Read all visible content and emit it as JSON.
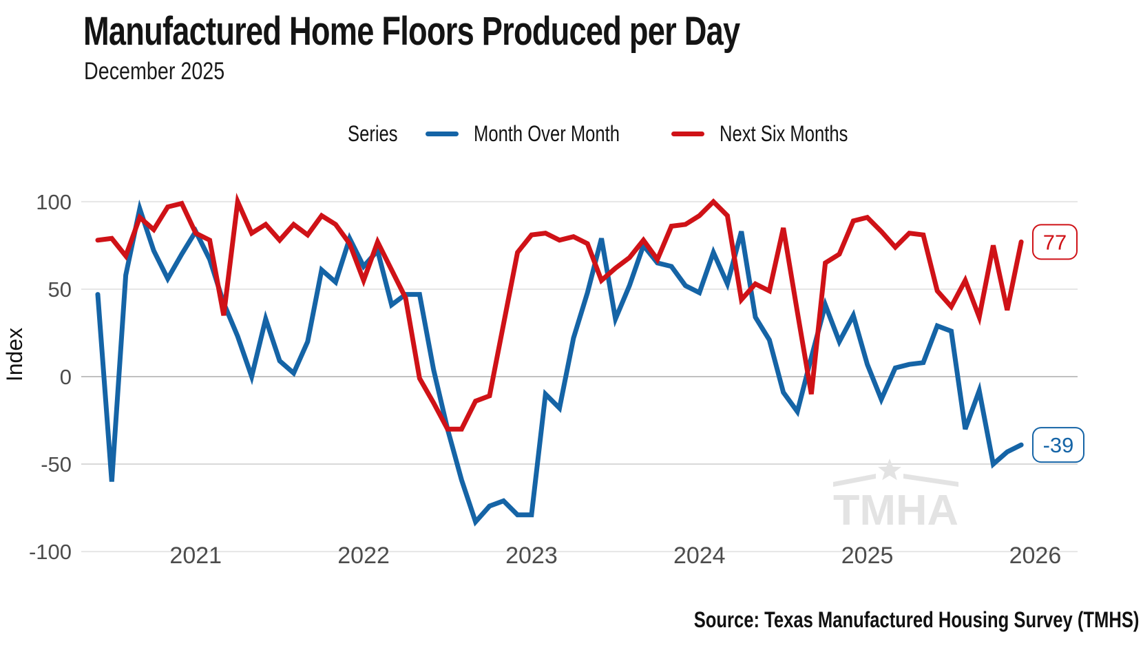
{
  "chart_data": {
    "type": "line",
    "title": "Manufactured Home Floors Produced per Day",
    "subtitle": "December 2025",
    "legend_title": "Series",
    "ylabel": "Index",
    "ylim": [
      -100,
      100
    ],
    "yticks": [
      100,
      50,
      0,
      -50,
      -100
    ],
    "grid": "horizontal-only",
    "legend_position": "top-center",
    "x": [
      "2020-06",
      "2020-07",
      "2020-08",
      "2020-09",
      "2020-10",
      "2020-11",
      "2020-12",
      "2021-01",
      "2021-02",
      "2021-03",
      "2021-04",
      "2021-05",
      "2021-06",
      "2021-07",
      "2021-08",
      "2021-09",
      "2021-10",
      "2021-11",
      "2021-12",
      "2022-01",
      "2022-02",
      "2022-03",
      "2022-04",
      "2022-05",
      "2022-06",
      "2022-07",
      "2022-08",
      "2022-09",
      "2022-10",
      "2022-11",
      "2022-12",
      "2023-01",
      "2023-02",
      "2023-03",
      "2023-04",
      "2023-05",
      "2023-06",
      "2023-07",
      "2023-08",
      "2023-09",
      "2023-10",
      "2023-11",
      "2023-12",
      "2024-01",
      "2024-02",
      "2024-03",
      "2024-04",
      "2024-05",
      "2024-06",
      "2024-07",
      "2024-08",
      "2024-09",
      "2024-10",
      "2024-11",
      "2024-12",
      "2025-01",
      "2025-02",
      "2025-03",
      "2025-04",
      "2025-05",
      "2025-06",
      "2025-07",
      "2025-08",
      "2025-09",
      "2025-10",
      "2025-11",
      "2025-12"
    ],
    "xticks": [
      {
        "label": "2021",
        "month_index": 7
      },
      {
        "label": "2022",
        "month_index": 19
      },
      {
        "label": "2023",
        "month_index": 31
      },
      {
        "label": "2024",
        "month_index": 43
      },
      {
        "label": "2025",
        "month_index": 55
      },
      {
        "label": "2026",
        "month_index": 67
      }
    ],
    "series": [
      {
        "name": "Month Over Month",
        "color": "#1564a6",
        "values": [
          47,
          -60,
          58,
          96,
          72,
          56,
          70,
          83,
          67,
          42,
          23,
          0,
          33,
          9,
          2,
          20,
          61,
          54,
          79,
          63,
          72,
          41,
          47,
          47,
          4,
          -30,
          -59,
          -83,
          -74,
          -71,
          -79,
          -79,
          -10,
          -18,
          22,
          48,
          79,
          33,
          52,
          75,
          65,
          63,
          52,
          48,
          71,
          53,
          83,
          34,
          21,
          -9,
          -20,
          11,
          41,
          20,
          35,
          7,
          -13,
          5,
          7,
          8,
          29,
          26,
          -30,
          -8,
          -50,
          -43,
          -39
        ]
      },
      {
        "name": "Next Six Months",
        "color": "#cf1217",
        "values": [
          78,
          79,
          69,
          91,
          84,
          97,
          99,
          82,
          78,
          35,
          100,
          82,
          87,
          78,
          87,
          81,
          92,
          87,
          76,
          55,
          77,
          61,
          45,
          -1,
          -15,
          -30,
          -30,
          -14,
          -11,
          30,
          71,
          81,
          82,
          78,
          80,
          76,
          55,
          62,
          68,
          78,
          67,
          86,
          87,
          92,
          100,
          92,
          44,
          53,
          49,
          85,
          37,
          -10,
          65,
          70,
          89,
          91,
          83,
          74,
          82,
          81,
          49,
          40,
          55,
          34,
          75,
          38,
          77
        ]
      }
    ],
    "end_labels": [
      {
        "series": "Next Six Months",
        "text": "77"
      },
      {
        "series": "Month Over Month",
        "text": "-39"
      }
    ]
  },
  "watermark": {
    "text": "TMHA"
  },
  "footer": {
    "source": "Source: Texas Manufactured Housing Survey (TMHS)"
  }
}
